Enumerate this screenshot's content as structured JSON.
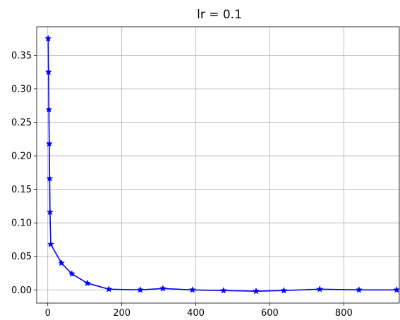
{
  "chart_data": {
    "type": "line",
    "title": "lr = 0.1",
    "xlabel": "",
    "ylabel": "",
    "xlim": [
      -30,
      950
    ],
    "ylim": [
      -0.0197,
      0.3925
    ],
    "xticks": [
      0,
      200,
      400,
      600,
      800
    ],
    "yticks": [
      0.0,
      0.05,
      0.1,
      0.15,
      0.2,
      0.25,
      0.3,
      0.35
    ],
    "grid": true,
    "series": [
      {
        "color": "#0000ff",
        "marker": "star",
        "x": [
          1,
          2,
          3,
          4,
          5,
          6,
          8,
          37,
          65,
          107,
          165,
          250,
          311,
          391,
          475,
          563,
          638,
          735,
          841,
          943
        ],
        "y": [
          0.375,
          0.325,
          0.269,
          0.218,
          0.166,
          0.116,
          0.068,
          0.04,
          0.024,
          0.01,
          0.001,
          0.0,
          0.002,
          0.0,
          -0.001,
          -0.002,
          -0.001,
          0.001,
          0.0,
          0.0
        ]
      }
    ]
  }
}
